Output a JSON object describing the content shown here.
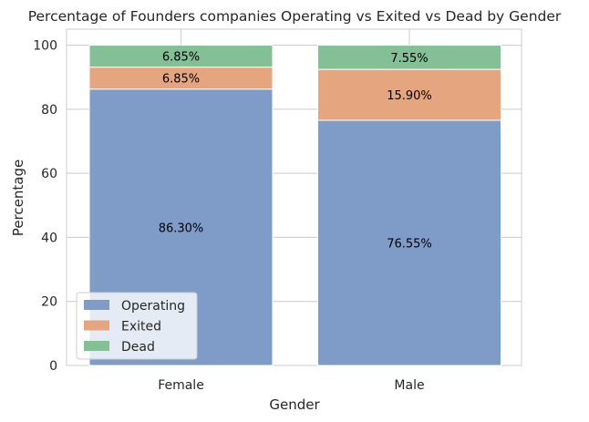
{
  "chart_data": {
    "type": "bar",
    "stacked": true,
    "title": "Percentage of Founders companies Operating vs Exited vs Dead by Gender",
    "xlabel": "Gender",
    "ylabel": "Percentage",
    "ylim": [
      0,
      105
    ],
    "yticks": [
      0,
      20,
      40,
      60,
      80,
      100
    ],
    "categories": [
      "Female",
      "Male"
    ],
    "series": [
      {
        "name": "Operating",
        "color": "#7f9cc9",
        "values": [
          86.3,
          76.55
        ],
        "labels": [
          "86.30%",
          "76.55%"
        ]
      },
      {
        "name": "Exited",
        "color": "#e5a57f",
        "values": [
          6.85,
          15.9
        ],
        "labels": [
          "6.85%",
          "15.90%"
        ]
      },
      {
        "name": "Dead",
        "color": "#84c095",
        "values": [
          6.85,
          7.55
        ],
        "labels": [
          "6.85%",
          "7.55%"
        ]
      }
    ],
    "grid": true,
    "legend_position": "lower-left"
  }
}
